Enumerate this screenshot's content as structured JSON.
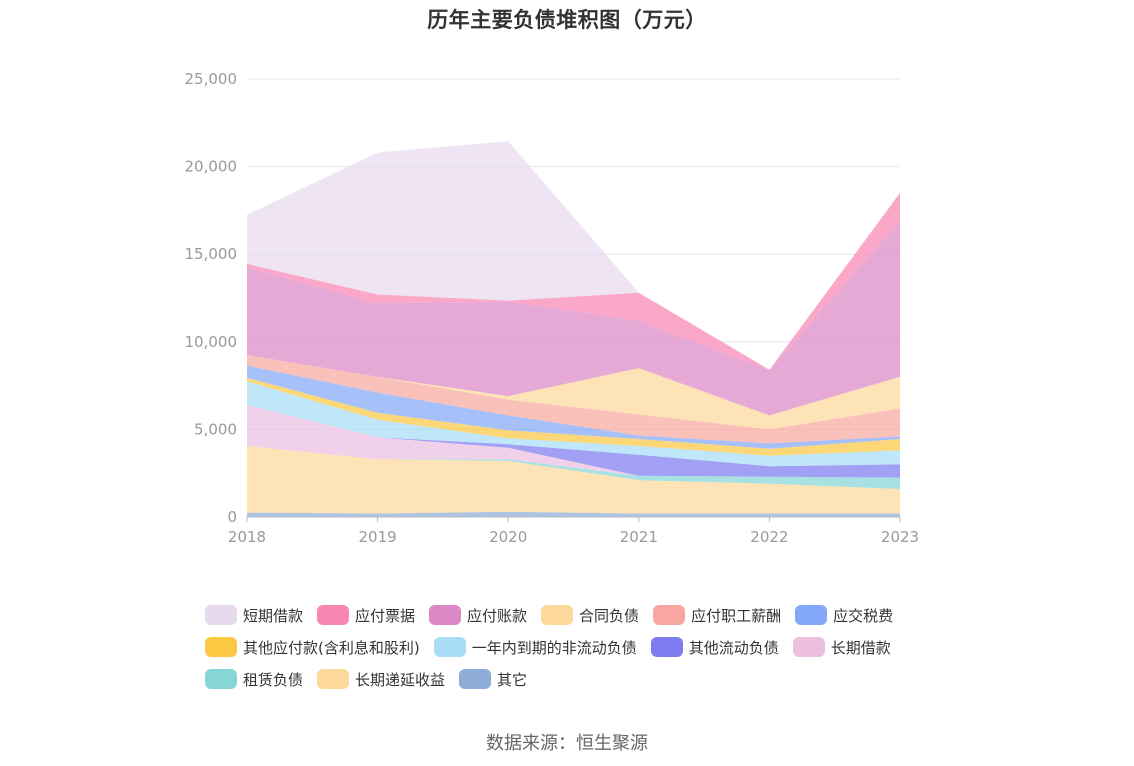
{
  "chart_data": {
    "type": "area",
    "title": "历年主要负债堆积图（万元）",
    "stacked": true,
    "x": [
      "2018",
      "2019",
      "2020",
      "2021",
      "2022",
      "2023"
    ],
    "ylim": [
      0,
      25000
    ],
    "yticks": [
      0,
      5000,
      10000,
      15000,
      20000,
      25000
    ],
    "ytick_labels": [
      "0",
      "5,000",
      "10,000",
      "15,000",
      "20,000",
      "25,000"
    ],
    "grid": true,
    "legend_position": "bottom",
    "series": [
      {
        "name": "其它",
        "color": "#8eadd8",
        "values": [
          250,
          200,
          300,
          200,
          200,
          200
        ]
      },
      {
        "name": "长期递延收益",
        "color": "#fdd89a",
        "values": [
          3800,
          3100,
          2900,
          1900,
          1700,
          1400
        ]
      },
      {
        "name": "租赁负债",
        "color": "#86d6d6",
        "values": [
          0,
          0,
          100,
          250,
          400,
          650
        ]
      },
      {
        "name": "长期借款",
        "color": "#ecbfe0",
        "values": [
          2350,
          1250,
          650,
          0,
          0,
          0
        ]
      },
      {
        "name": "其他流动负债",
        "color": "#7d7cf0",
        "values": [
          0,
          0,
          200,
          1200,
          600,
          750
        ]
      },
      {
        "name": "一年内到期的非流动负债",
        "color": "#a8dcf7",
        "values": [
          1350,
          1000,
          350,
          500,
          600,
          800
        ]
      },
      {
        "name": "其他应付款(含利息和股利)",
        "color": "#fbc844",
        "values": [
          200,
          400,
          450,
          400,
          400,
          650
        ]
      },
      {
        "name": "应交税费",
        "color": "#84a8f8",
        "values": [
          700,
          1150,
          850,
          200,
          300,
          150
        ]
      },
      {
        "name": "应付职工薪酬",
        "color": "#f8a7a0",
        "values": [
          600,
          900,
          900,
          1200,
          800,
          1600
        ]
      },
      {
        "name": "合同负债",
        "color": "#fdd89a",
        "values": [
          0,
          0,
          200,
          2650,
          800,
          1800
        ]
      },
      {
        "name": "应付账款",
        "color": "#dc88c6",
        "values": [
          5000,
          4200,
          5400,
          2700,
          2600,
          8900
        ]
      },
      {
        "name": "应付票据",
        "color": "#f987b3",
        "values": [
          200,
          500,
          50,
          1600,
          0,
          1600
        ]
      },
      {
        "name": "短期借款",
        "color": "#e7d9ee",
        "values": [
          2800,
          8100,
          9100,
          0,
          0,
          0
        ]
      }
    ]
  },
  "legend_order": [
    "短期借款",
    "应付票据",
    "应付账款",
    "合同负债",
    "应付职工薪酬",
    "应交税费",
    "其他应付款(含利息和股利)",
    "一年内到期的非流动负债",
    "其他流动负债",
    "长期借款",
    "租赁负债",
    "长期递延收益",
    "其它"
  ],
  "source": "数据来源：恒生聚源"
}
